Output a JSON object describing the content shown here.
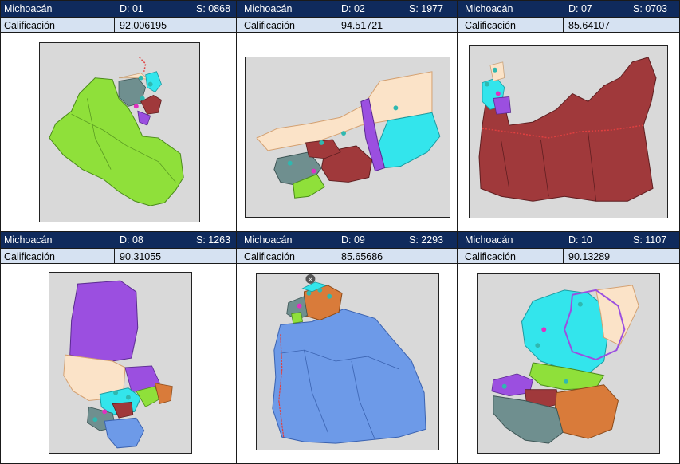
{
  "colors": {
    "header_bg": "#0f2a5c",
    "subheader_bg": "#d6e2f2",
    "map_bg": "#d9d9d9",
    "district_green": "#8fe03a",
    "district_maroon": "#a0393b",
    "district_cyan": "#33e5ec",
    "district_purple": "#9b4fe0",
    "district_blue": "#6d9ae8",
    "district_orange": "#d97b3a",
    "district_slate": "#6f8f8f",
    "district_peach": "#fbe3c8"
  },
  "panels": [
    {
      "state": "Michoacán",
      "district": "D: 01",
      "section": "S: 0868",
      "score_label": "Calificación",
      "score": "92.006195"
    },
    {
      "state": "Michoacán",
      "district": "D: 02",
      "section": "S: 1977",
      "score_label": "Calificación",
      "score": "94.51721"
    },
    {
      "state": "Michoacán",
      "district": "D: 07",
      "section": "S: 0703",
      "score_label": "Calificación",
      "score": "85.64107"
    },
    {
      "state": "Michoacán",
      "district": "D: 08",
      "section": "S: 1263",
      "score_label": "Calificación",
      "score": "90.31055"
    },
    {
      "state": "Michoacán",
      "district": "D: 09",
      "section": "S: 2293",
      "score_label": "Calificación",
      "score": "85.65686"
    },
    {
      "state": "Michoacán",
      "district": "D: 10",
      "section": "S: 1107",
      "score_label": "Calificación",
      "score": "90.13289"
    }
  ]
}
